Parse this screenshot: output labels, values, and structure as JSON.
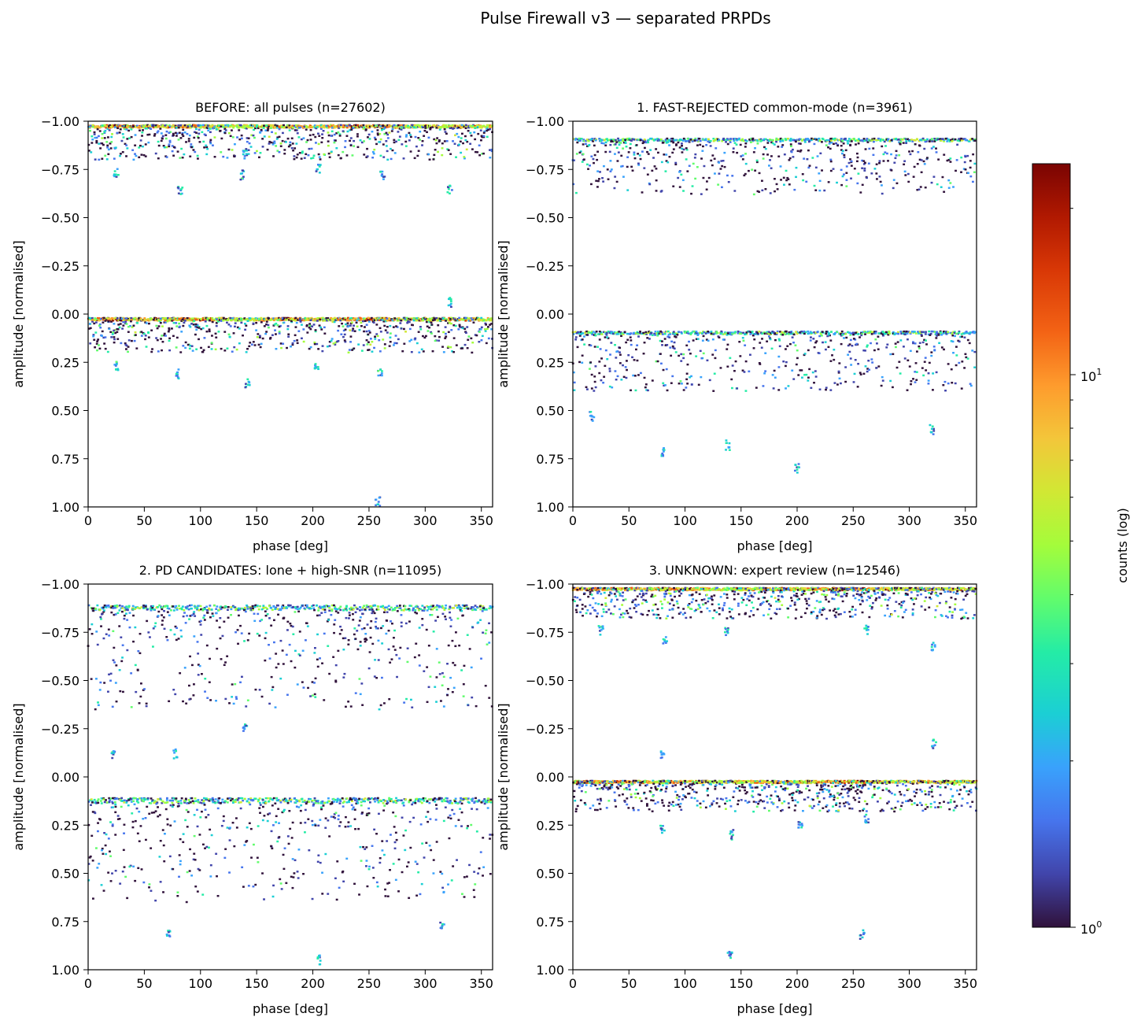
{
  "figure": {
    "suptitle": "Pulse Firewall v3 — separated PRPDs"
  },
  "chart_data": [
    {
      "type": "heatmap",
      "title": "BEFORE: all pulses (n=27602)",
      "xlabel": "phase [deg]",
      "ylabel": "amplitude [normalised]",
      "xlim": [
        0,
        360
      ],
      "ylim": [
        1.0,
        -1.0
      ],
      "xticks": [
        "0",
        "50",
        "100",
        "150",
        "200",
        "250",
        "300",
        "350"
      ],
      "yticks": [
        "-1.00",
        "-0.75",
        "-0.50",
        "-0.25",
        "0.00",
        "0.25",
        "0.50",
        "0.75",
        "1.00"
      ],
      "bands": [
        {
          "amplitude_top": -0.98,
          "amplitude_bottom": -0.8,
          "intensity": "high"
        },
        {
          "amplitude_top": 0.02,
          "amplitude_bottom": 0.2,
          "intensity": "high"
        }
      ],
      "clusters": [
        {
          "phase": 25,
          "amplitude": -0.73
        },
        {
          "phase": 82,
          "amplitude": -0.64
        },
        {
          "phase": 140,
          "amplitude": -0.84
        },
        {
          "phase": 137,
          "amplitude": -0.72
        },
        {
          "phase": 205,
          "amplitude": -0.75
        },
        {
          "phase": 262,
          "amplitude": -0.72
        },
        {
          "phase": 322,
          "amplitude": -0.65
        },
        {
          "phase": 322,
          "amplitude": -0.06
        },
        {
          "phase": 25,
          "amplitude": 0.27
        },
        {
          "phase": 80,
          "amplitude": 0.31
        },
        {
          "phase": 142,
          "amplitude": 0.36
        },
        {
          "phase": 203,
          "amplitude": 0.28
        },
        {
          "phase": 260,
          "amplitude": 0.3
        },
        {
          "phase": 258,
          "amplitude": 0.97
        }
      ],
      "intensity_level": 1.0
    },
    {
      "type": "heatmap",
      "title": "1. FAST-REJECTED common-mode (n=3961)",
      "xlabel": "phase [deg]",
      "ylabel": "amplitude [normalised]",
      "xlim": [
        0,
        360
      ],
      "ylim": [
        1.0,
        -1.0
      ],
      "xticks": [
        "0",
        "50",
        "100",
        "150",
        "200",
        "250",
        "300",
        "350"
      ],
      "yticks": [
        "-1.00",
        "-0.75",
        "-0.50",
        "-0.25",
        "0.00",
        "0.25",
        "0.50",
        "0.75",
        "1.00"
      ],
      "bands": [
        {
          "amplitude_top": -0.91,
          "amplitude_bottom": -0.62,
          "intensity": "medium"
        },
        {
          "amplitude_top": 0.09,
          "amplitude_bottom": 0.4,
          "intensity": "medium"
        }
      ],
      "clusters": [
        {
          "phase": 17,
          "amplitude": 0.53
        },
        {
          "phase": 138,
          "amplitude": 0.68
        },
        {
          "phase": 200,
          "amplitude": 0.8
        },
        {
          "phase": 320,
          "amplitude": 0.6
        },
        {
          "phase": 80,
          "amplitude": 0.72
        }
      ],
      "intensity_level": 0.55
    },
    {
      "type": "heatmap",
      "title": "2. PD CANDIDATES: lone + high-SNR (n=11095)",
      "xlabel": "phase [deg]",
      "ylabel": "amplitude [normalised]",
      "xlim": [
        0,
        360
      ],
      "ylim": [
        1.0,
        -1.0
      ],
      "xticks": [
        "0",
        "50",
        "100",
        "150",
        "200",
        "250",
        "300",
        "350"
      ],
      "yticks": [
        "-1.00",
        "-0.75",
        "-0.50",
        "-0.25",
        "0.00",
        "0.25",
        "0.50",
        "0.75",
        "1.00"
      ],
      "bands": [
        {
          "amplitude_top": -0.89,
          "amplitude_bottom": -0.35,
          "intensity": "medium"
        },
        {
          "amplitude_top": 0.11,
          "amplitude_bottom": 0.65,
          "intensity": "medium"
        }
      ],
      "clusters": [
        {
          "phase": 22,
          "amplitude": -0.12
        },
        {
          "phase": 78,
          "amplitude": -0.12
        },
        {
          "phase": 140,
          "amplitude": -0.25
        },
        {
          "phase": 205,
          "amplitude": 0.95
        },
        {
          "phase": 72,
          "amplitude": 0.82
        },
        {
          "phase": 315,
          "amplitude": 0.78
        }
      ],
      "intensity_level": 0.75
    },
    {
      "type": "heatmap",
      "title": "3. UNKNOWN: expert review (n=12546)",
      "xlabel": "phase [deg]",
      "ylabel": "amplitude [normalised]",
      "xlim": [
        0,
        360
      ],
      "ylim": [
        1.0,
        -1.0
      ],
      "xticks": [
        "0",
        "50",
        "100",
        "150",
        "200",
        "250",
        "300",
        "350"
      ],
      "yticks": [
        "-1.00",
        "-0.75",
        "-0.50",
        "-0.25",
        "0.00",
        "0.25",
        "0.50",
        "0.75",
        "1.00"
      ],
      "bands": [
        {
          "amplitude_top": -0.98,
          "amplitude_bottom": -0.82,
          "intensity": "high"
        },
        {
          "amplitude_top": 0.02,
          "amplitude_bottom": 0.18,
          "intensity": "high"
        }
      ],
      "clusters": [
        {
          "phase": 25,
          "amplitude": -0.76
        },
        {
          "phase": 82,
          "amplitude": -0.7
        },
        {
          "phase": 137,
          "amplitude": -0.76
        },
        {
          "phase": 262,
          "amplitude": -0.76
        },
        {
          "phase": 322,
          "amplitude": -0.68
        },
        {
          "phase": 80,
          "amplitude": -0.11
        },
        {
          "phase": 322,
          "amplitude": -0.17
        },
        {
          "phase": 80,
          "amplitude": 0.27
        },
        {
          "phase": 142,
          "amplitude": 0.3
        },
        {
          "phase": 203,
          "amplitude": 0.25
        },
        {
          "phase": 262,
          "amplitude": 0.22
        },
        {
          "phase": 258,
          "amplitude": 0.82
        },
        {
          "phase": 140,
          "amplitude": 0.93
        }
      ],
      "intensity_level": 0.95
    }
  ],
  "colorbar": {
    "label": "counts (log)",
    "tick_1": "10",
    "tick_1_exp": "0",
    "tick_2": "10",
    "tick_2_exp": "1",
    "scale": "log",
    "range": [
      1,
      30
    ],
    "colormap": "turbo"
  }
}
